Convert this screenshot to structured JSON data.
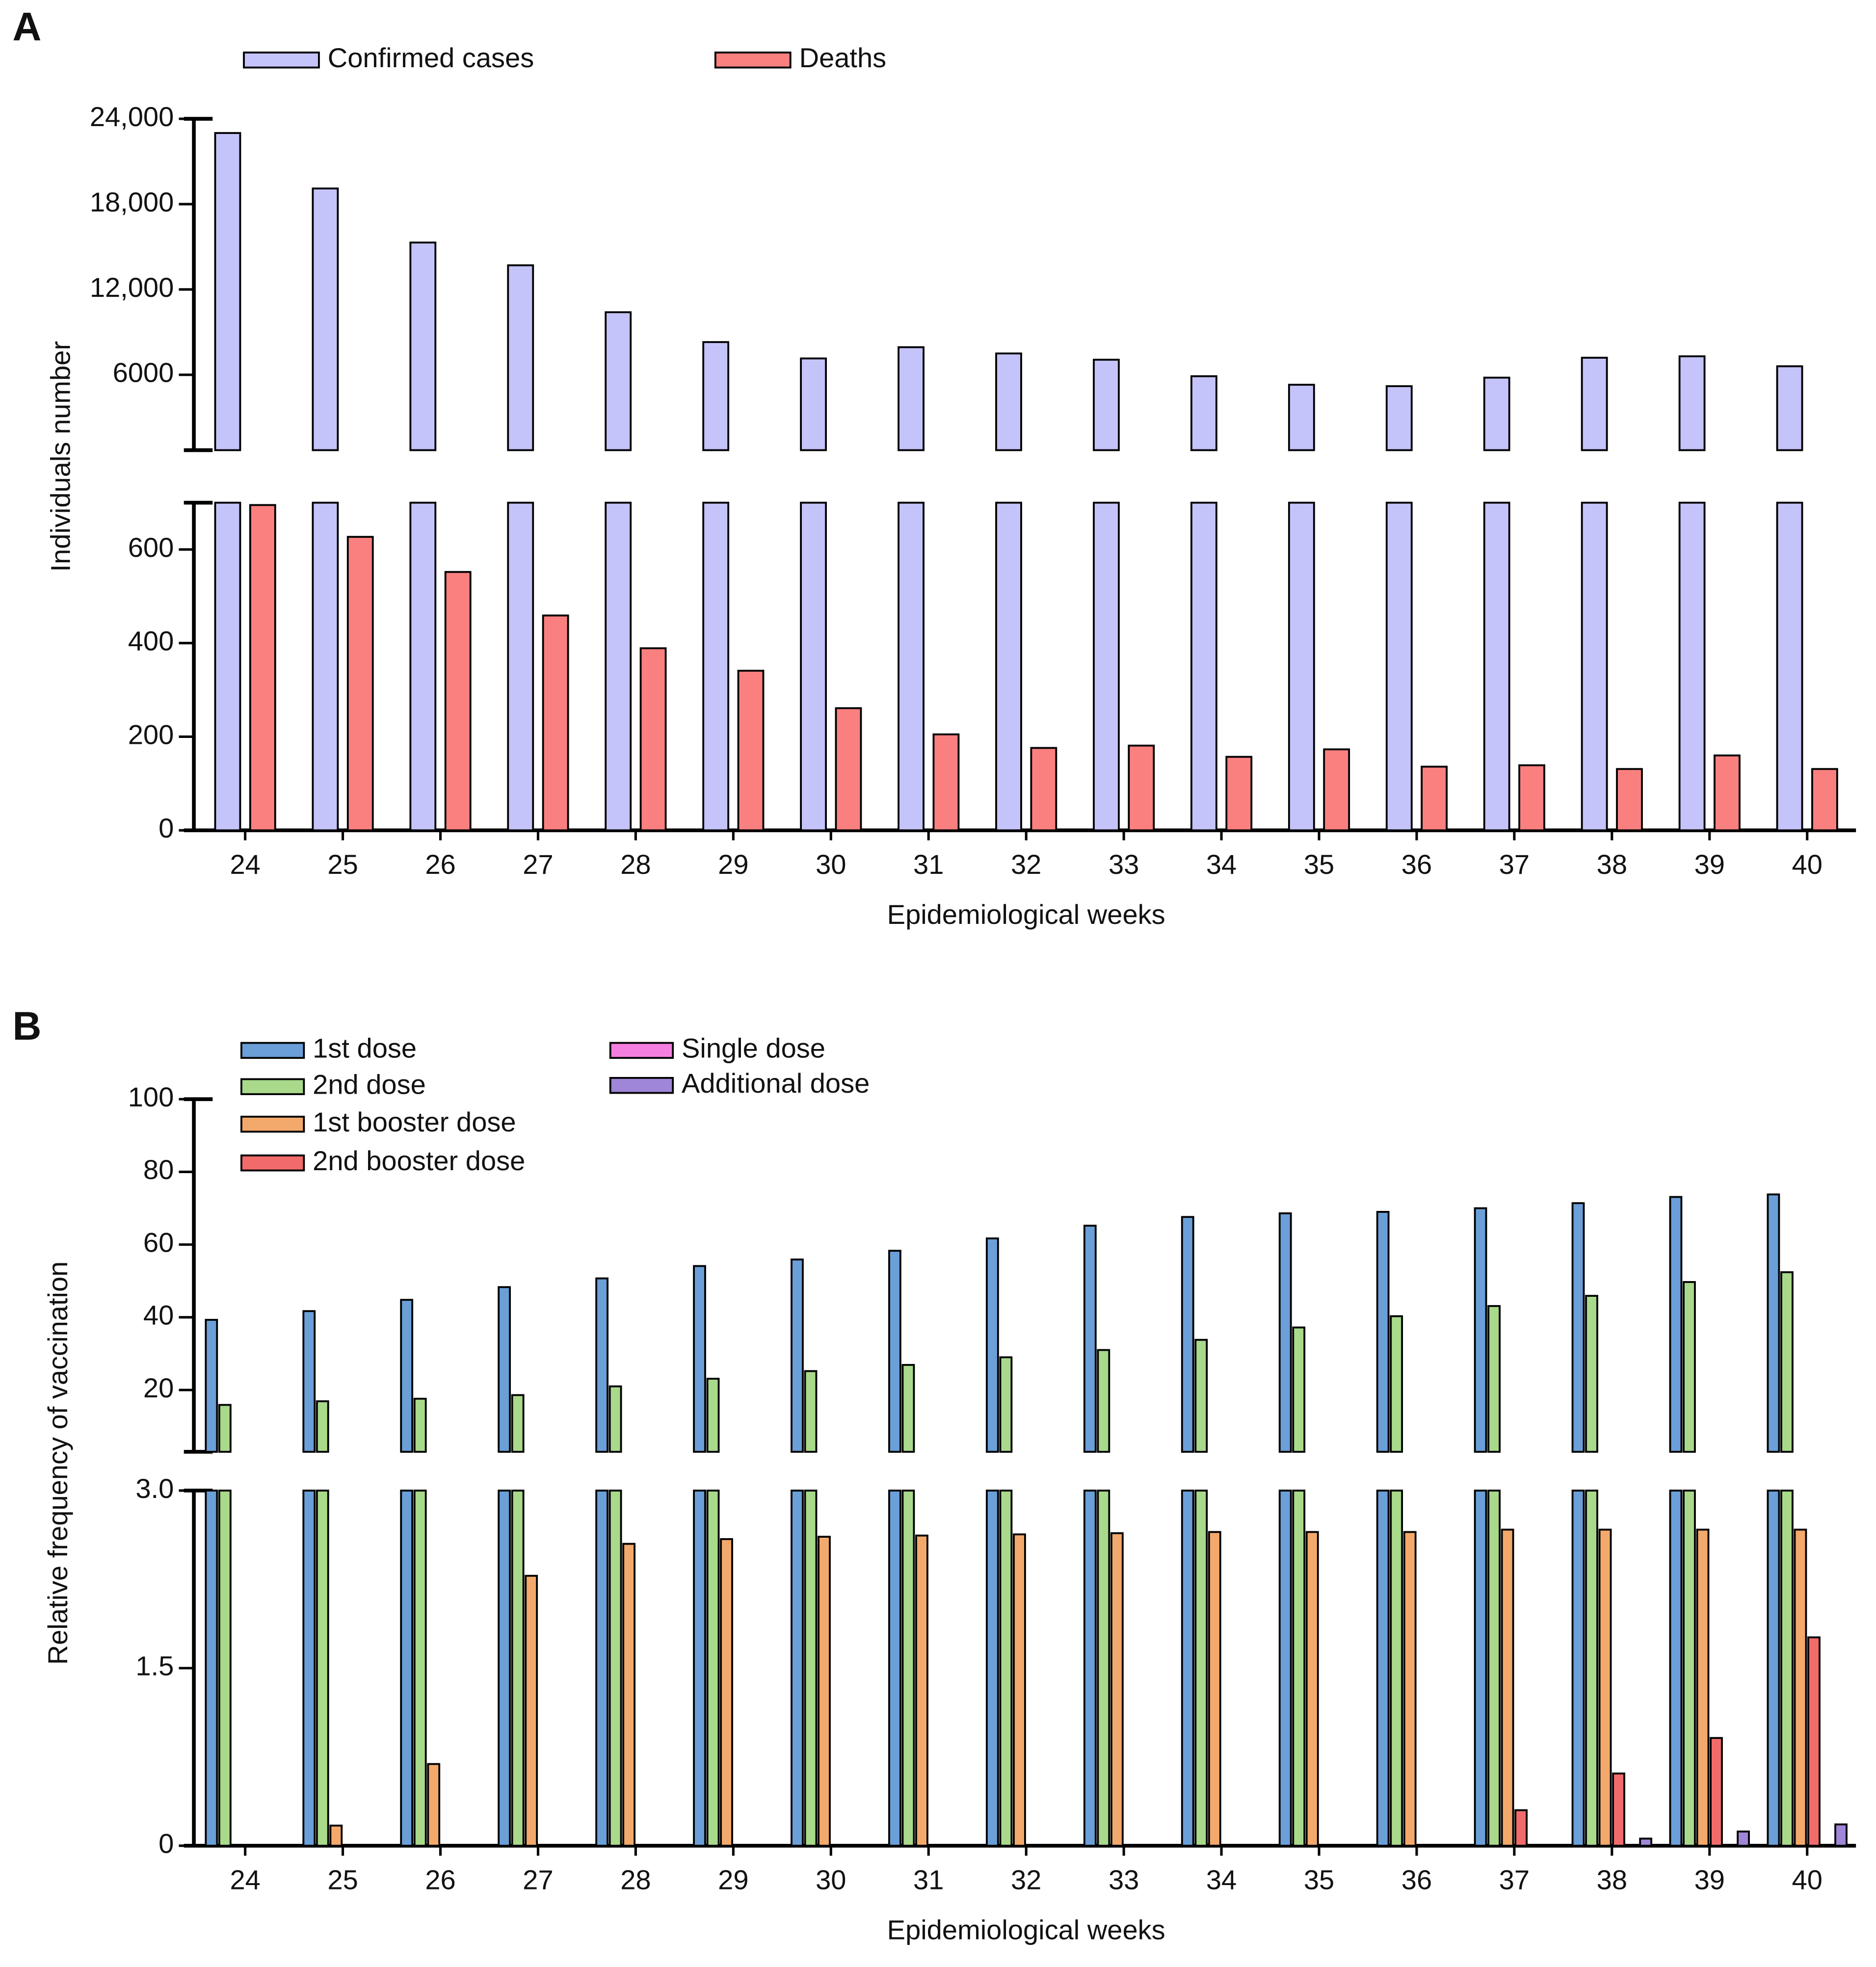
{
  "chart_data": [
    {
      "type": "bar",
      "panel_label": "A",
      "xlabel": "Epidemiological weeks",
      "ylabel": "Individuals number",
      "categories": [
        24,
        25,
        26,
        27,
        28,
        29,
        30,
        31,
        32,
        33,
        34,
        35,
        36,
        37,
        38,
        39,
        40
      ],
      "segments": [
        {
          "ylim": [
            0,
            700
          ],
          "yticks": [
            0,
            200,
            400,
            600
          ]
        },
        {
          "ylim": [
            700,
            24000
          ],
          "yticks": [
            6000,
            {
              "value": 12000,
              "label": "12,000"
            },
            {
              "value": 18000,
              "label": "18,000"
            },
            {
              "value": 24000,
              "label": "24,000"
            }
          ]
        }
      ],
      "series": [
        {
          "name": "Confirmed cases",
          "color": "#c4c4fa",
          "values": [
            23000,
            19100,
            15300,
            13700,
            10400,
            8300,
            7150,
            7940,
            7500,
            7060,
            5900,
            5300,
            5200,
            5800,
            7200,
            7300,
            6600
          ]
        },
        {
          "name": "Deaths",
          "color": "#fa8080",
          "values": [
            695,
            627,
            552,
            459,
            389,
            341,
            261,
            205,
            176,
            181,
            157,
            173,
            136,
            139,
            131,
            160,
            131
          ]
        }
      ]
    },
    {
      "type": "bar",
      "panel_label": "B",
      "xlabel": "Epidemiological weeks",
      "ylabel": "Relative frequency of vaccination",
      "categories": [
        24,
        25,
        26,
        27,
        28,
        29,
        30,
        31,
        32,
        33,
        34,
        35,
        36,
        37,
        38,
        39,
        40
      ],
      "segments": [
        {
          "ylim": [
            0,
            3
          ],
          "yticks": [
            0,
            1.5,
            {
              "value": 3,
              "label": "3.0"
            }
          ]
        },
        {
          "ylim": [
            3,
            100
          ],
          "yticks": [
            20,
            40,
            60,
            80,
            100
          ]
        }
      ],
      "series": [
        {
          "name": "1st dose",
          "color": "#6a9fd8",
          "values": [
            39.3,
            41.7,
            44.8,
            48.3,
            50.7,
            54.1,
            55.9,
            58.3,
            61.7,
            65.2,
            67.6,
            68.6,
            69.0,
            70.0,
            71.4,
            73.1,
            73.8
          ]
        },
        {
          "name": "2nd dose",
          "color": "#a9d98a",
          "values": [
            15.9,
            16.9,
            17.6,
            18.6,
            21.0,
            23.1,
            25.2,
            26.9,
            29.0,
            31.0,
            33.8,
            37.2,
            40.3,
            43.1,
            45.9,
            49.7,
            52.4
          ]
        },
        {
          "name": "1st booster dose",
          "color": "#f3a96b",
          "values": [
            0,
            0.17,
            0.69,
            2.28,
            2.55,
            2.59,
            2.61,
            2.62,
            2.63,
            2.64,
            2.65,
            2.65,
            2.65,
            2.67,
            2.67,
            2.67,
            2.67
          ]
        },
        {
          "name": "2nd booster dose",
          "color": "#f26b6b",
          "values": [
            0,
            0,
            0,
            0,
            0,
            0,
            0,
            0,
            0,
            0,
            0,
            0,
            0,
            0.3,
            0.61,
            0.91,
            1.76
          ]
        },
        {
          "name": "Single dose",
          "color": "#f47fe0",
          "values": [
            0,
            0,
            0,
            0,
            0,
            0,
            0,
            0,
            0,
            0,
            0,
            0,
            0,
            0,
            0,
            0,
            0
          ]
        },
        {
          "name": "Additional dose",
          "color": "#9f86d8",
          "values": [
            0,
            0,
            0,
            0,
            0,
            0,
            0,
            0,
            0,
            0,
            0,
            0,
            0,
            0,
            0.06,
            0.12,
            0.18
          ]
        }
      ]
    }
  ]
}
